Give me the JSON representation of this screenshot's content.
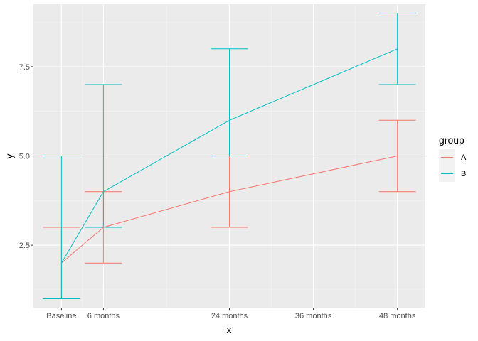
{
  "chart_data": {
    "type": "line",
    "xlabel": "x",
    "ylabel": "y",
    "x_ticks": [
      {
        "label": "Baseline",
        "month": 0
      },
      {
        "label": "6 months",
        "month": 6
      },
      {
        "label": "24 months",
        "month": 24
      },
      {
        "label": "36 months",
        "month": 36
      },
      {
        "label": "48 months",
        "month": 48
      }
    ],
    "xlim": [
      -4,
      52
    ],
    "y_ticks": [
      2.5,
      5.0,
      7.5
    ],
    "y_tick_labels": [
      "2.5",
      "5.0",
      "7.5"
    ],
    "ylim": [
      0.75,
      9.25
    ],
    "grid": true,
    "legend": {
      "title": "group",
      "position": "right"
    },
    "series": [
      {
        "name": "A",
        "color": "#F8766D",
        "points": [
          {
            "x": 0,
            "y": 2,
            "ymin": 1,
            "ymax": 3
          },
          {
            "x": 6,
            "y": 3,
            "ymin": 2,
            "ymax": 4
          },
          {
            "x": 24,
            "y": 4,
            "ymin": 3,
            "ymax": 5
          },
          {
            "x": 48,
            "y": 5,
            "ymin": 4,
            "ymax": 6
          }
        ]
      },
      {
        "name": "B",
        "color": "#00BFC4",
        "points": [
          {
            "x": 0,
            "y": 2,
            "ymin": 1,
            "ymax": 5
          },
          {
            "x": 6,
            "y": 4,
            "ymin": 3,
            "ymax": 7
          },
          {
            "x": 24,
            "y": 6,
            "ymin": 5,
            "ymax": 8
          },
          {
            "x": 48,
            "y": 8,
            "ymin": 7,
            "ymax": 9
          }
        ]
      }
    ]
  }
}
